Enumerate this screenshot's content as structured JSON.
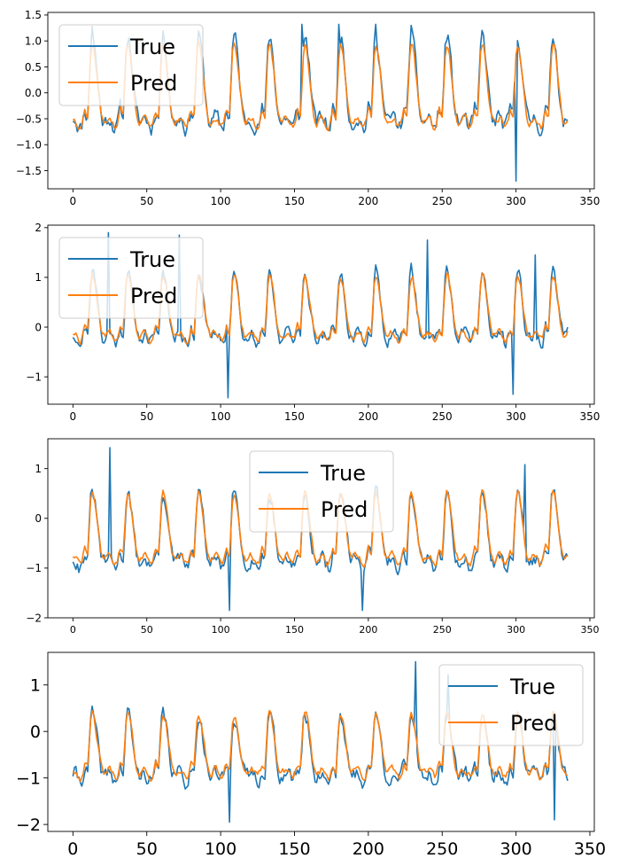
{
  "chart_data": [
    {
      "type": "line",
      "x_ticks": [
        0,
        50,
        100,
        150,
        200,
        250,
        300,
        350
      ],
      "x_tick_labels": [
        "0",
        "50",
        "100",
        "150",
        "200",
        "250",
        "300",
        "350"
      ],
      "xlim": [
        -17,
        353
      ],
      "ylim": [
        -1.85,
        1.55
      ],
      "y_ticks": [
        -1.5,
        -1.0,
        -0.5,
        0.0,
        0.5,
        1.0,
        1.5
      ],
      "y_tick_labels": [
        "−1.5",
        "−1.0",
        "−0.5",
        "0.0",
        "0.5",
        "1.0",
        "1.5"
      ],
      "legend_loc": "upper-left",
      "series": [
        {
          "name": "True",
          "color": "#1f77b4",
          "seed": 11,
          "base": -0.05,
          "amp": 1.05,
          "noise": 0.28,
          "extremes": [
            [
              13,
              1.28
            ],
            [
              155,
              1.32
            ],
            [
              180,
              1.32
            ],
            [
              205,
              1.32
            ],
            [
              229,
              1.3
            ],
            [
              300,
              -1.7
            ]
          ]
        },
        {
          "name": "Pred",
          "color": "#ff7f0e",
          "seed": 12,
          "base": -0.1,
          "amp": 0.95,
          "noise": 0.12,
          "extremes": []
        }
      ],
      "legend": [
        "True",
        "Pred"
      ]
    },
    {
      "type": "line",
      "x_ticks": [
        0,
        50,
        100,
        150,
        200,
        250,
        300,
        350
      ],
      "x_tick_labels": [
        "0",
        "50",
        "100",
        "150",
        "200",
        "250",
        "300",
        "350"
      ],
      "xlim": [
        -17,
        353
      ],
      "ylim": [
        -1.55,
        2.05
      ],
      "y_ticks": [
        -1,
        0,
        1,
        2
      ],
      "y_tick_labels": [
        "−1",
        "0",
        "1",
        "2"
      ],
      "legend_loc": "upper-left",
      "series": [
        {
          "name": "True",
          "color": "#1f77b4",
          "seed": 21,
          "base": 0.2,
          "amp": 0.85,
          "noise": 0.25,
          "extremes": [
            [
              24,
              1.9
            ],
            [
              72,
              1.85
            ],
            [
              105,
              -1.42
            ],
            [
              240,
              1.75
            ],
            [
              298,
              -1.35
            ],
            [
              313,
              1.45
            ]
          ]
        },
        {
          "name": "Pred",
          "color": "#ff7f0e",
          "seed": 22,
          "base": 0.2,
          "amp": 0.78,
          "noise": 0.12,
          "extremes": []
        }
      ],
      "legend": [
        "True",
        "Pred"
      ]
    },
    {
      "type": "line",
      "x_ticks": [
        0,
        50,
        100,
        150,
        200,
        250,
        300,
        350
      ],
      "x_tick_labels": [
        "0",
        "50",
        "100",
        "150",
        "200",
        "250",
        "300",
        "350"
      ],
      "xlim": [
        -17,
        353
      ],
      "ylim": [
        -2.0,
        1.6
      ],
      "y_ticks": [
        -2,
        -1,
        0,
        1
      ],
      "y_tick_labels": [
        "−2",
        "−1",
        "0",
        "1"
      ],
      "legend_loc": "upper-center",
      "series": [
        {
          "name": "True",
          "color": "#1f77b4",
          "seed": 31,
          "base": -0.45,
          "amp": 0.9,
          "noise": 0.25,
          "extremes": [
            [
              25,
              1.42
            ],
            [
              106,
              -1.85
            ],
            [
              196,
              -1.85
            ],
            [
              306,
              1.08
            ]
          ]
        },
        {
          "name": "Pred",
          "color": "#ff7f0e",
          "seed": 32,
          "base": -0.4,
          "amp": 0.85,
          "noise": 0.12,
          "extremes": []
        }
      ],
      "legend": [
        "True",
        "Pred"
      ]
    },
    {
      "type": "line",
      "x_ticks": [
        0,
        50,
        100,
        150,
        200,
        250,
        300,
        350
      ],
      "x_tick_labels": [
        "0",
        "50",
        "100",
        "150",
        "200",
        "250",
        "300",
        "350"
      ],
      "xlim": [
        -17,
        353
      ],
      "ylim": [
        -2.15,
        1.7
      ],
      "y_ticks": [
        -2,
        -1,
        0,
        1
      ],
      "y_tick_labels": [
        "−2",
        "−1",
        "0",
        "1"
      ],
      "legend_loc": "upper-right",
      "series": [
        {
          "name": "True",
          "color": "#1f77b4",
          "seed": 41,
          "base": -0.55,
          "amp": 0.85,
          "noise": 0.3,
          "extremes": [
            [
              106,
              -1.95
            ],
            [
              232,
              1.5
            ],
            [
              254,
              1.22
            ],
            [
              326,
              -1.9
            ]
          ]
        },
        {
          "name": "Pred",
          "color": "#ff7f0e",
          "seed": 42,
          "base": -0.5,
          "amp": 0.8,
          "noise": 0.15,
          "extremes": []
        }
      ],
      "legend": [
        "True",
        "Pred"
      ]
    }
  ]
}
